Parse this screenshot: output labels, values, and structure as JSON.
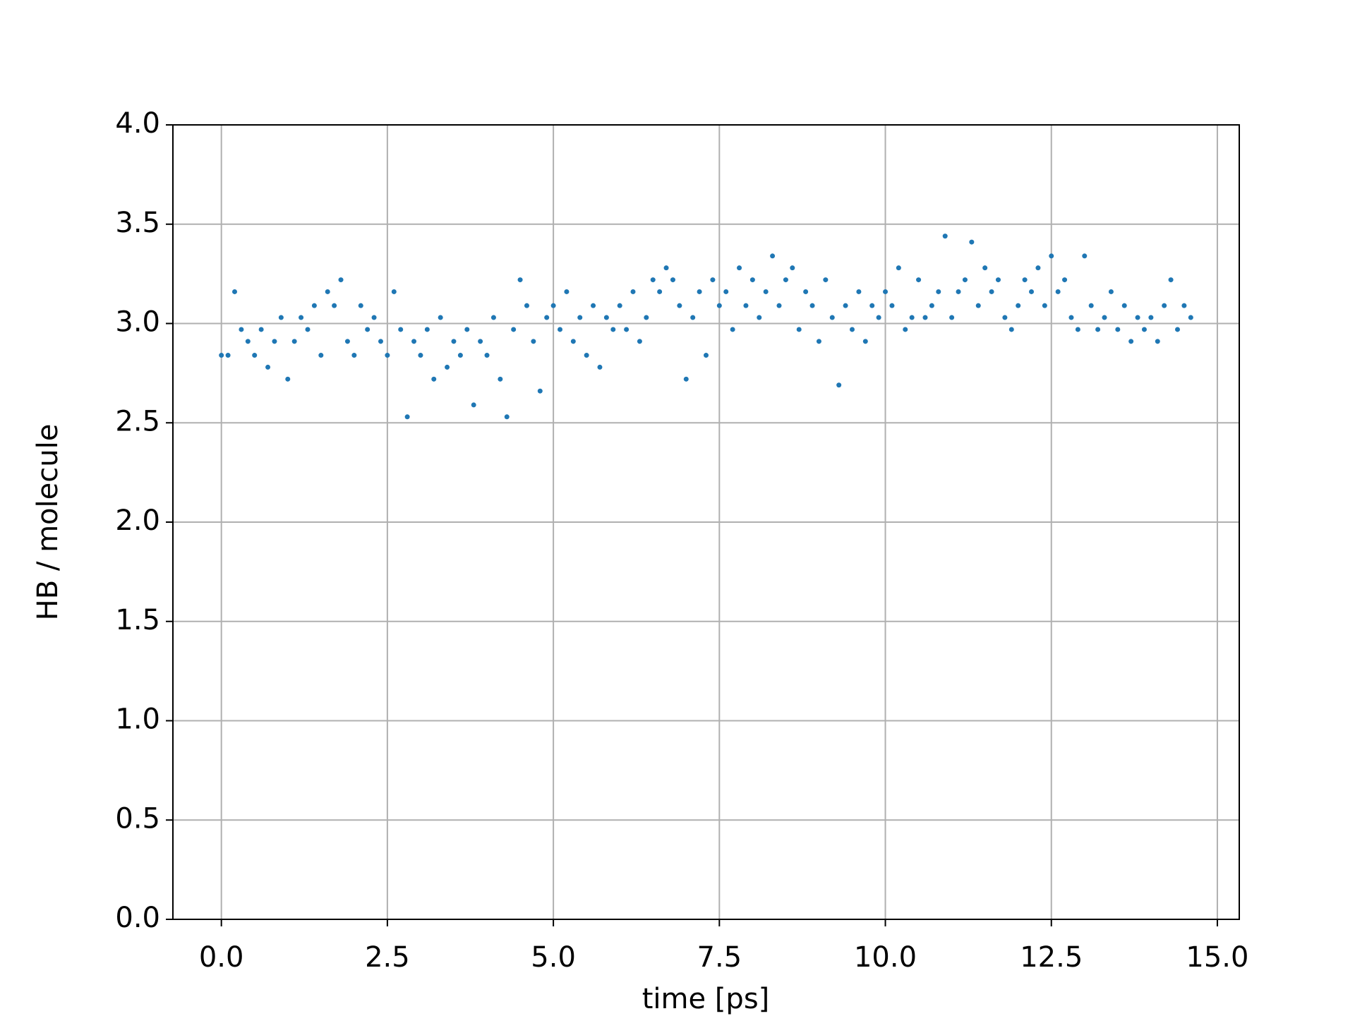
{
  "chart_data": {
    "type": "scatter",
    "xlabel": "time [ps]",
    "ylabel": "HB / molecule",
    "xlim": [
      -0.73,
      15.33
    ],
    "ylim": [
      0,
      4
    ],
    "xticks": [
      {
        "value": 0,
        "label": "0.0"
      },
      {
        "value": 2.5,
        "label": "2.5"
      },
      {
        "value": 5,
        "label": "5.0"
      },
      {
        "value": 7.5,
        "label": "7.5"
      },
      {
        "value": 10,
        "label": "10.0"
      },
      {
        "value": 12.5,
        "label": "12.5"
      },
      {
        "value": 15,
        "label": "15.0"
      }
    ],
    "yticks": [
      {
        "value": 0,
        "label": "0.0"
      },
      0.5,
      {
        "value": 1,
        "label": "1.0"
      },
      1.5,
      {
        "value": 2,
        "label": "2.0"
      },
      2.5,
      {
        "value": 3,
        "label": "3.0"
      },
      3.5,
      {
        "value": 4,
        "label": "4.0"
      }
    ],
    "grid": true,
    "series": [
      {
        "color": "#1f77b4",
        "x": [
          0.0,
          0.1,
          0.2,
          0.3,
          0.4,
          0.5,
          0.6,
          0.7,
          0.8,
          0.9,
          1.0,
          1.1,
          1.2,
          1.3,
          1.4,
          1.5,
          1.6,
          1.7,
          1.8,
          1.9,
          2.0,
          2.1,
          2.2,
          2.3,
          2.4,
          2.5,
          2.6,
          2.7,
          2.8,
          2.9,
          3.0,
          3.1,
          3.2,
          3.3,
          3.4,
          3.5,
          3.6,
          3.7,
          3.8,
          3.9,
          4.0,
          4.1,
          4.2,
          4.3,
          4.4,
          4.5,
          4.6,
          4.7,
          4.8,
          4.9,
          5.0,
          5.1,
          5.2,
          5.3,
          5.4,
          5.5,
          5.6,
          5.7,
          5.8,
          5.9,
          6.0,
          6.1,
          6.2,
          6.3,
          6.4,
          6.5,
          6.6,
          6.7,
          6.8,
          6.9,
          7.0,
          7.1,
          7.2,
          7.3,
          7.4,
          7.5,
          7.6,
          7.7,
          7.8,
          7.9,
          8.0,
          8.1,
          8.2,
          8.3,
          8.4,
          8.5,
          8.6,
          8.7,
          8.8,
          8.9,
          9.0,
          9.1,
          9.2,
          9.3,
          9.4,
          9.5,
          9.6,
          9.7,
          9.8,
          9.9,
          10.0,
          10.1,
          10.2,
          10.3,
          10.4,
          10.5,
          10.6,
          10.7,
          10.8,
          10.9,
          11.0,
          11.1,
          11.2,
          11.3,
          11.4,
          11.5,
          11.6,
          11.7,
          11.8,
          11.9,
          12.0,
          12.1,
          12.2,
          12.3,
          12.4,
          12.5,
          12.6,
          12.7,
          12.8,
          12.9,
          13.0,
          13.1,
          13.2,
          13.3,
          13.4,
          13.5,
          13.6,
          13.7,
          13.8,
          13.9,
          14.0,
          14.1,
          14.2,
          14.3,
          14.4,
          14.5,
          14.6
        ],
        "values": [
          2.84,
          2.84,
          3.16,
          2.97,
          2.91,
          2.84,
          2.97,
          2.78,
          2.91,
          3.03,
          2.72,
          2.91,
          3.03,
          2.97,
          3.09,
          2.84,
          3.16,
          3.09,
          3.22,
          2.91,
          2.84,
          3.09,
          2.97,
          3.03,
          2.91,
          2.84,
          3.16,
          2.97,
          2.53,
          2.91,
          2.84,
          2.97,
          2.72,
          3.03,
          2.78,
          2.91,
          2.84,
          2.97,
          2.59,
          2.91,
          2.84,
          3.03,
          2.72,
          2.53,
          2.97,
          3.22,
          3.09,
          2.91,
          2.66,
          3.03,
          3.09,
          2.97,
          3.16,
          2.91,
          3.03,
          2.84,
          3.09,
          2.78,
          3.03,
          2.97,
          3.09,
          2.97,
          3.16,
          2.91,
          3.03,
          3.22,
          3.16,
          3.28,
          3.22,
          3.09,
          2.72,
          3.03,
          3.16,
          2.84,
          3.22,
          3.09,
          3.16,
          2.97,
          3.28,
          3.09,
          3.22,
          3.03,
          3.16,
          3.34,
          3.09,
          3.22,
          3.28,
          2.97,
          3.16,
          3.09,
          2.91,
          3.22,
          3.03,
          2.69,
          3.09,
          2.97,
          3.16,
          2.91,
          3.09,
          3.03,
          3.16,
          3.09,
          3.28,
          2.97,
          3.03,
          3.22,
          3.03,
          3.09,
          3.16,
          3.44,
          3.03,
          3.16,
          3.22,
          3.41,
          3.09,
          3.28,
          3.16,
          3.22,
          3.03,
          2.97,
          3.09,
          3.22,
          3.16,
          3.28,
          3.09,
          3.34,
          3.16,
          3.22,
          3.03,
          2.97,
          3.34,
          3.09,
          2.97,
          3.03,
          3.16,
          2.97,
          3.09,
          2.91,
          3.03,
          2.97,
          3.03,
          2.91,
          3.09,
          3.22,
          2.97,
          3.09,
          3.03
        ]
      }
    ]
  }
}
